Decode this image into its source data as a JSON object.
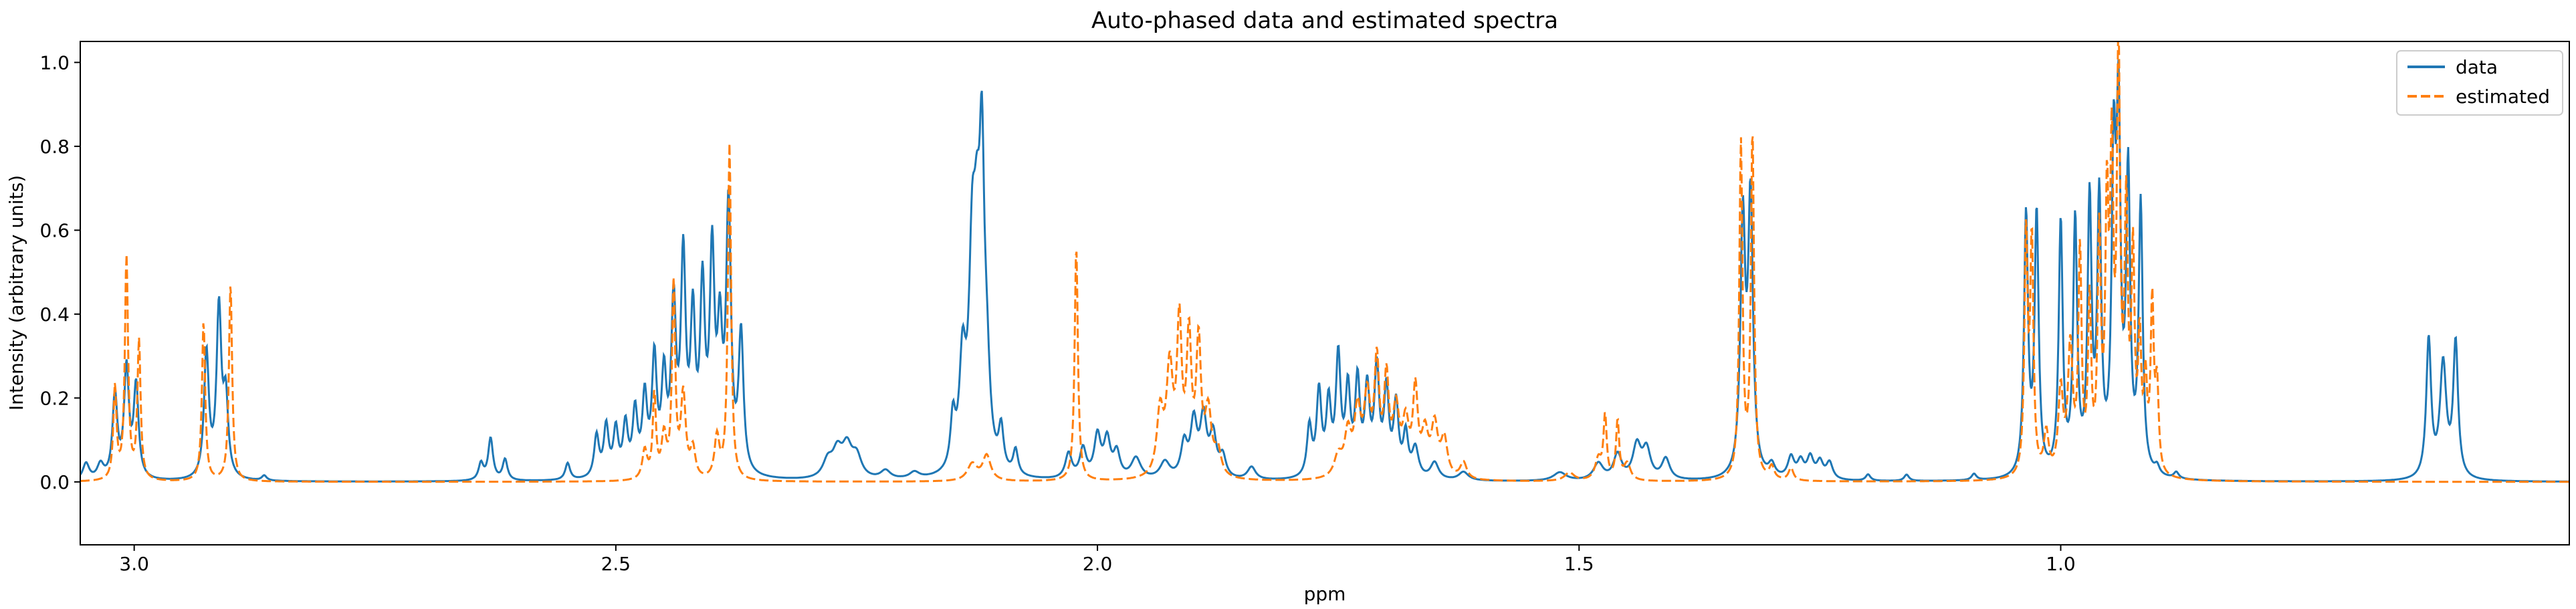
{
  "chart_data": {
    "type": "line",
    "title": "Auto-phased data and estimated spectra",
    "xlabel": "ppm",
    "ylabel": "Intensity (arbitrary units)",
    "x_reversed": true,
    "xlim": [
      3.056,
      0.472
    ],
    "ylim": [
      -0.15,
      1.05
    ],
    "xticks": [
      3.0,
      2.5,
      2.0,
      1.5,
      1.0
    ],
    "xtick_labels": [
      "3.0",
      "2.5",
      "2.0",
      "1.5",
      "1.0"
    ],
    "yticks": [
      0.0,
      0.2,
      0.4,
      0.6,
      0.8,
      1.0
    ],
    "ytick_labels": [
      "0.0",
      "0.2",
      "0.4",
      "0.6",
      "0.8",
      "1.0"
    ],
    "grid": false,
    "legend_position": "top-right",
    "series": [
      {
        "name": "data",
        "color": "#1f77b4",
        "linestyle": "solid",
        "peaks": [
          {
            "x": 3.05,
            "h": 0.04,
            "w": 0.004
          },
          {
            "x": 3.035,
            "h": 0.035,
            "w": 0.004
          },
          {
            "x": 3.02,
            "h": 0.2,
            "w": 0.003
          },
          {
            "x": 3.008,
            "h": 0.26,
            "w": 0.003
          },
          {
            "x": 2.998,
            "h": 0.22,
            "w": 0.003
          },
          {
            "x": 2.925,
            "h": 0.3,
            "w": 0.003
          },
          {
            "x": 2.912,
            "h": 0.4,
            "w": 0.003
          },
          {
            "x": 2.905,
            "h": 0.18,
            "w": 0.003
          },
          {
            "x": 2.865,
            "h": 0.012,
            "w": 0.003
          },
          {
            "x": 2.64,
            "h": 0.04,
            "w": 0.003
          },
          {
            "x": 2.63,
            "h": 0.1,
            "w": 0.003
          },
          {
            "x": 2.615,
            "h": 0.05,
            "w": 0.003
          },
          {
            "x": 2.55,
            "h": 0.04,
            "w": 0.003
          },
          {
            "x": 2.52,
            "h": 0.1,
            "w": 0.003
          },
          {
            "x": 2.51,
            "h": 0.12,
            "w": 0.003
          },
          {
            "x": 2.5,
            "h": 0.11,
            "w": 0.003
          },
          {
            "x": 2.49,
            "h": 0.12,
            "w": 0.003
          },
          {
            "x": 2.48,
            "h": 0.15,
            "w": 0.003
          },
          {
            "x": 2.47,
            "h": 0.18,
            "w": 0.003
          },
          {
            "x": 2.46,
            "h": 0.27,
            "w": 0.003
          },
          {
            "x": 2.45,
            "h": 0.22,
            "w": 0.003
          },
          {
            "x": 2.44,
            "h": 0.39,
            "w": 0.003
          },
          {
            "x": 2.43,
            "h": 0.5,
            "w": 0.003
          },
          {
            "x": 2.42,
            "h": 0.35,
            "w": 0.003
          },
          {
            "x": 2.41,
            "h": 0.42,
            "w": 0.003
          },
          {
            "x": 2.4,
            "h": 0.5,
            "w": 0.003
          },
          {
            "x": 2.392,
            "h": 0.3,
            "w": 0.003
          },
          {
            "x": 2.383,
            "h": 0.63,
            "w": 0.003
          },
          {
            "x": 2.37,
            "h": 0.33,
            "w": 0.003
          },
          {
            "x": 2.28,
            "h": 0.04,
            "w": 0.006
          },
          {
            "x": 2.27,
            "h": 0.06,
            "w": 0.006
          },
          {
            "x": 2.26,
            "h": 0.07,
            "w": 0.006
          },
          {
            "x": 2.25,
            "h": 0.05,
            "w": 0.006
          },
          {
            "x": 2.22,
            "h": 0.02,
            "w": 0.006
          },
          {
            "x": 2.19,
            "h": 0.015,
            "w": 0.006
          },
          {
            "x": 2.15,
            "h": 0.12,
            "w": 0.003
          },
          {
            "x": 2.14,
            "h": 0.25,
            "w": 0.004
          },
          {
            "x": 2.13,
            "h": 0.45,
            "w": 0.004
          },
          {
            "x": 2.125,
            "h": 0.4,
            "w": 0.004
          },
          {
            "x": 2.12,
            "h": 0.62,
            "w": 0.003
          },
          {
            "x": 2.115,
            "h": 0.2,
            "w": 0.004
          },
          {
            "x": 2.1,
            "h": 0.1,
            "w": 0.003
          },
          {
            "x": 2.085,
            "h": 0.06,
            "w": 0.003
          },
          {
            "x": 2.03,
            "h": 0.06,
            "w": 0.004
          },
          {
            "x": 2.015,
            "h": 0.07,
            "w": 0.004
          },
          {
            "x": 2.0,
            "h": 0.1,
            "w": 0.004
          },
          {
            "x": 1.99,
            "h": 0.09,
            "w": 0.004
          },
          {
            "x": 1.98,
            "h": 0.06,
            "w": 0.004
          },
          {
            "x": 1.96,
            "h": 0.05,
            "w": 0.006
          },
          {
            "x": 1.93,
            "h": 0.04,
            "w": 0.006
          },
          {
            "x": 1.91,
            "h": 0.08,
            "w": 0.004
          },
          {
            "x": 1.9,
            "h": 0.13,
            "w": 0.004
          },
          {
            "x": 1.89,
            "h": 0.14,
            "w": 0.004
          },
          {
            "x": 1.88,
            "h": 0.1,
            "w": 0.004
          },
          {
            "x": 1.87,
            "h": 0.05,
            "w": 0.004
          },
          {
            "x": 1.84,
            "h": 0.03,
            "w": 0.005
          },
          {
            "x": 1.78,
            "h": 0.12,
            "w": 0.003
          },
          {
            "x": 1.77,
            "h": 0.2,
            "w": 0.003
          },
          {
            "x": 1.76,
            "h": 0.17,
            "w": 0.003
          },
          {
            "x": 1.75,
            "h": 0.28,
            "w": 0.003
          },
          {
            "x": 1.74,
            "h": 0.2,
            "w": 0.003
          },
          {
            "x": 1.73,
            "h": 0.22,
            "w": 0.003
          },
          {
            "x": 1.72,
            "h": 0.2,
            "w": 0.003
          },
          {
            "x": 1.71,
            "h": 0.25,
            "w": 0.003
          },
          {
            "x": 1.7,
            "h": 0.2,
            "w": 0.003
          },
          {
            "x": 1.69,
            "h": 0.17,
            "w": 0.003
          },
          {
            "x": 1.68,
            "h": 0.1,
            "w": 0.003
          },
          {
            "x": 1.67,
            "h": 0.07,
            "w": 0.004
          },
          {
            "x": 1.65,
            "h": 0.04,
            "w": 0.005
          },
          {
            "x": 1.62,
            "h": 0.02,
            "w": 0.006
          },
          {
            "x": 1.52,
            "h": 0.02,
            "w": 0.008
          },
          {
            "x": 1.48,
            "h": 0.04,
            "w": 0.006
          },
          {
            "x": 1.46,
            "h": 0.06,
            "w": 0.005
          },
          {
            "x": 1.44,
            "h": 0.08,
            "w": 0.005
          },
          {
            "x": 1.43,
            "h": 0.07,
            "w": 0.005
          },
          {
            "x": 1.41,
            "h": 0.05,
            "w": 0.005
          },
          {
            "x": 1.33,
            "h": 0.6,
            "w": 0.003
          },
          {
            "x": 1.322,
            "h": 0.65,
            "w": 0.003
          },
          {
            "x": 1.3,
            "h": 0.03,
            "w": 0.004
          },
          {
            "x": 1.28,
            "h": 0.05,
            "w": 0.004
          },
          {
            "x": 1.27,
            "h": 0.04,
            "w": 0.004
          },
          {
            "x": 1.26,
            "h": 0.05,
            "w": 0.004
          },
          {
            "x": 1.25,
            "h": 0.04,
            "w": 0.004
          },
          {
            "x": 1.24,
            "h": 0.04,
            "w": 0.004
          },
          {
            "x": 1.2,
            "h": 0.015,
            "w": 0.003
          },
          {
            "x": 1.16,
            "h": 0.015,
            "w": 0.003
          },
          {
            "x": 1.09,
            "h": 0.015,
            "w": 0.003
          },
          {
            "x": 1.036,
            "h": 0.62,
            "w": 0.0025
          },
          {
            "x": 1.025,
            "h": 0.62,
            "w": 0.0025
          },
          {
            "x": 1.0,
            "h": 0.6,
            "w": 0.0025
          },
          {
            "x": 0.985,
            "h": 0.6,
            "w": 0.0025
          },
          {
            "x": 0.97,
            "h": 0.64,
            "w": 0.0025
          },
          {
            "x": 0.96,
            "h": 0.64,
            "w": 0.0025
          },
          {
            "x": 0.945,
            "h": 0.7,
            "w": 0.0025
          },
          {
            "x": 0.94,
            "h": 0.8,
            "w": 0.0025
          },
          {
            "x": 0.93,
            "h": 0.7,
            "w": 0.0025
          },
          {
            "x": 0.917,
            "h": 0.64,
            "w": 0.0025
          },
          {
            "x": 0.9,
            "h": 0.02,
            "w": 0.003
          },
          {
            "x": 0.88,
            "h": 0.015,
            "w": 0.003
          },
          {
            "x": 0.618,
            "h": 0.33,
            "w": 0.003
          },
          {
            "x": 0.603,
            "h": 0.27,
            "w": 0.004
          },
          {
            "x": 0.59,
            "h": 0.32,
            "w": 0.003
          }
        ]
      },
      {
        "name": "estimated",
        "color": "#ff7f0e",
        "linestyle": "dashed",
        "peaks": [
          {
            "x": 3.02,
            "h": 0.22,
            "w": 0.002
          },
          {
            "x": 3.008,
            "h": 0.53,
            "w": 0.002
          },
          {
            "x": 2.995,
            "h": 0.33,
            "w": 0.002
          },
          {
            "x": 2.928,
            "h": 0.38,
            "w": 0.002
          },
          {
            "x": 2.9,
            "h": 0.47,
            "w": 0.002
          },
          {
            "x": 2.47,
            "h": 0.07,
            "w": 0.003
          },
          {
            "x": 2.46,
            "h": 0.2,
            "w": 0.002
          },
          {
            "x": 2.45,
            "h": 0.1,
            "w": 0.003
          },
          {
            "x": 2.44,
            "h": 0.46,
            "w": 0.002
          },
          {
            "x": 2.43,
            "h": 0.2,
            "w": 0.003
          },
          {
            "x": 2.42,
            "h": 0.07,
            "w": 0.003
          },
          {
            "x": 2.395,
            "h": 0.1,
            "w": 0.003
          },
          {
            "x": 2.382,
            "h": 0.8,
            "w": 0.002
          },
          {
            "x": 2.13,
            "h": 0.04,
            "w": 0.006
          },
          {
            "x": 2.115,
            "h": 0.06,
            "w": 0.005
          },
          {
            "x": 2.022,
            "h": 0.56,
            "w": 0.002
          },
          {
            "x": 1.935,
            "h": 0.15,
            "w": 0.004
          },
          {
            "x": 1.925,
            "h": 0.25,
            "w": 0.004
          },
          {
            "x": 1.915,
            "h": 0.35,
            "w": 0.003
          },
          {
            "x": 1.905,
            "h": 0.32,
            "w": 0.003
          },
          {
            "x": 1.895,
            "h": 0.31,
            "w": 0.003
          },
          {
            "x": 1.885,
            "h": 0.15,
            "w": 0.004
          },
          {
            "x": 1.875,
            "h": 0.06,
            "w": 0.004
          },
          {
            "x": 1.75,
            "h": 0.05,
            "w": 0.005
          },
          {
            "x": 1.74,
            "h": 0.1,
            "w": 0.004
          },
          {
            "x": 1.73,
            "h": 0.15,
            "w": 0.004
          },
          {
            "x": 1.72,
            "h": 0.18,
            "w": 0.004
          },
          {
            "x": 1.71,
            "h": 0.26,
            "w": 0.003
          },
          {
            "x": 1.7,
            "h": 0.22,
            "w": 0.003
          },
          {
            "x": 1.69,
            "h": 0.15,
            "w": 0.004
          },
          {
            "x": 1.68,
            "h": 0.12,
            "w": 0.004
          },
          {
            "x": 1.67,
            "h": 0.2,
            "w": 0.003
          },
          {
            "x": 1.66,
            "h": 0.1,
            "w": 0.004
          },
          {
            "x": 1.65,
            "h": 0.12,
            "w": 0.004
          },
          {
            "x": 1.64,
            "h": 0.09,
            "w": 0.004
          },
          {
            "x": 1.62,
            "h": 0.04,
            "w": 0.004
          },
          {
            "x": 1.51,
            "h": 0.02,
            "w": 0.006
          },
          {
            "x": 1.48,
            "h": 0.05,
            "w": 0.004
          },
          {
            "x": 1.473,
            "h": 0.15,
            "w": 0.002
          },
          {
            "x": 1.46,
            "h": 0.14,
            "w": 0.002
          },
          {
            "x": 1.45,
            "h": 0.04,
            "w": 0.004
          },
          {
            "x": 1.332,
            "h": 0.8,
            "w": 0.002
          },
          {
            "x": 1.32,
            "h": 0.82,
            "w": 0.002
          },
          {
            "x": 1.3,
            "h": 0.03,
            "w": 0.003
          },
          {
            "x": 1.28,
            "h": 0.03,
            "w": 0.003
          },
          {
            "x": 1.036,
            "h": 0.57,
            "w": 0.002
          },
          {
            "x": 1.03,
            "h": 0.55,
            "w": 0.002
          },
          {
            "x": 1.015,
            "h": 0.1,
            "w": 0.003
          },
          {
            "x": 1.0,
            "h": 0.2,
            "w": 0.003
          },
          {
            "x": 0.99,
            "h": 0.3,
            "w": 0.003
          },
          {
            "x": 0.98,
            "h": 0.52,
            "w": 0.002
          },
          {
            "x": 0.97,
            "h": 0.4,
            "w": 0.002
          },
          {
            "x": 0.96,
            "h": 0.55,
            "w": 0.002
          },
          {
            "x": 0.952,
            "h": 0.6,
            "w": 0.002
          },
          {
            "x": 0.947,
            "h": 0.7,
            "w": 0.002
          },
          {
            "x": 0.94,
            "h": 0.99,
            "w": 0.002
          },
          {
            "x": 0.932,
            "h": 0.6,
            "w": 0.002
          },
          {
            "x": 0.925,
            "h": 0.5,
            "w": 0.002
          },
          {
            "x": 0.918,
            "h": 0.3,
            "w": 0.002
          },
          {
            "x": 0.912,
            "h": 0.2,
            "w": 0.002
          },
          {
            "x": 0.905,
            "h": 0.4,
            "w": 0.002
          },
          {
            "x": 0.9,
            "h": 0.2,
            "w": 0.002
          }
        ]
      }
    ]
  }
}
